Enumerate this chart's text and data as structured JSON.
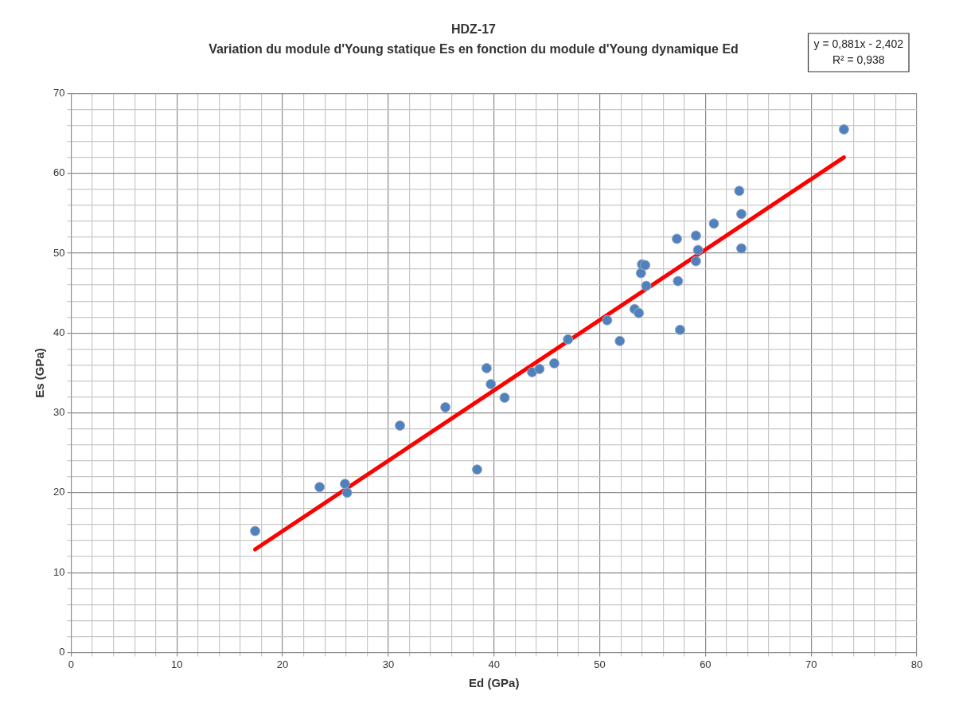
{
  "chart_data": {
    "type": "scatter",
    "title": "HDZ-17",
    "subtitle": "Variation du module d'Young statique Es en fonction du module d'Young dynamique Ed",
    "xlabel": "Ed (GPa)",
    "ylabel": "Es (GPa)",
    "annotations": [
      "y = 0,881x - 2,402",
      "R² = 0,938"
    ],
    "xlim": [
      0,
      80
    ],
    "ylim": [
      0,
      70
    ],
    "xticks": [
      0,
      {
        "value": 2,
        "label": null
      },
      {
        "value": 4,
        "label": null
      },
      {
        "value": 6,
        "label": null
      },
      {
        "value": 8,
        "label": null
      },
      10,
      {
        "value": 12,
        "label": null
      },
      {
        "value": 14,
        "label": null
      },
      {
        "value": 16,
        "label": null
      },
      {
        "value": 18,
        "label": null
      },
      20,
      {
        "value": 22,
        "label": null
      },
      {
        "value": 24,
        "label": null
      },
      {
        "value": 26,
        "label": null
      },
      {
        "value": 28,
        "label": null
      },
      30,
      {
        "value": 32,
        "label": null
      },
      {
        "value": 34,
        "label": null
      },
      {
        "value": 36,
        "label": null
      },
      {
        "value": 38,
        "label": null
      },
      40,
      {
        "value": 42,
        "label": null
      },
      {
        "value": 44,
        "label": null
      },
      {
        "value": 46,
        "label": null
      },
      {
        "value": 48,
        "label": null
      },
      50,
      {
        "value": 52,
        "label": null
      },
      {
        "value": 54,
        "label": null
      },
      {
        "value": 56,
        "label": null
      },
      {
        "value": 58,
        "label": null
      },
      60,
      {
        "value": 62,
        "label": null
      },
      {
        "value": 64,
        "label": null
      },
      {
        "value": 66,
        "label": null
      },
      {
        "value": 68,
        "label": null
      },
      70,
      {
        "value": 72,
        "label": null
      },
      {
        "value": 74,
        "label": null
      },
      {
        "value": 76,
        "label": null
      },
      {
        "value": 78,
        "label": null
      },
      80
    ],
    "yticks": [
      0,
      {
        "value": 2,
        "label": null
      },
      {
        "value": 4,
        "label": null
      },
      {
        "value": 6,
        "label": null
      },
      {
        "value": 8,
        "label": null
      },
      10,
      {
        "value": 12,
        "label": null
      },
      {
        "value": 14,
        "label": null
      },
      {
        "value": 16,
        "label": null
      },
      {
        "value": 18,
        "label": null
      },
      20,
      {
        "value": 22,
        "label": null
      },
      {
        "value": 24,
        "label": null
      },
      {
        "value": 26,
        "label": null
      },
      {
        "value": 28,
        "label": null
      },
      30,
      {
        "value": 32,
        "label": null
      },
      {
        "value": 34,
        "label": null
      },
      {
        "value": 36,
        "label": null
      },
      {
        "value": 38,
        "label": null
      },
      40,
      {
        "value": 42,
        "label": null
      },
      {
        "value": 44,
        "label": null
      },
      {
        "value": 46,
        "label": null
      },
      {
        "value": 48,
        "label": null
      },
      50,
      {
        "value": 52,
        "label": null
      },
      {
        "value": 54,
        "label": null
      },
      {
        "value": 56,
        "label": null
      },
      {
        "value": 58,
        "label": null
      },
      60,
      {
        "value": 62,
        "label": null
      },
      {
        "value": 64,
        "label": null
      },
      {
        "value": 66,
        "label": null
      },
      {
        "value": 68,
        "label": null
      },
      70
    ],
    "grid": true,
    "legend": false,
    "marker": "circle",
    "series": [
      {
        "color": "#4f81bd",
        "x": [
          17.4,
          23.5,
          25.9,
          26.1,
          31.1,
          35.4,
          38.4,
          39.3,
          39.7,
          41.0,
          43.6,
          44.3,
          45.7,
          47.0,
          50.7,
          51.9,
          53.3,
          53.7,
          54.4,
          53.9,
          54.0,
          54.3,
          57.3,
          57.4,
          57.6,
          59.1,
          59.1,
          59.3,
          60.8,
          63.2,
          63.4,
          63.4,
          73.1
        ],
        "values": [
          15.2,
          20.7,
          21.1,
          20.0,
          28.4,
          30.7,
          22.9,
          35.6,
          33.6,
          31.9,
          35.1,
          35.5,
          36.2,
          39.2,
          41.6,
          39.0,
          43.0,
          42.5,
          45.9,
          47.5,
          48.6,
          48.5,
          51.8,
          46.5,
          40.4,
          49.0,
          52.2,
          50.4,
          53.7,
          57.8,
          54.9,
          50.6,
          65.5
        ]
      },
      {
        "type": "line",
        "color": "#ff0000",
        "x": [
          17.4,
          73.1
        ],
        "values": [
          12.9,
          62.0
        ],
        "marker": "none",
        "line_style": "solid"
      }
    ]
  }
}
